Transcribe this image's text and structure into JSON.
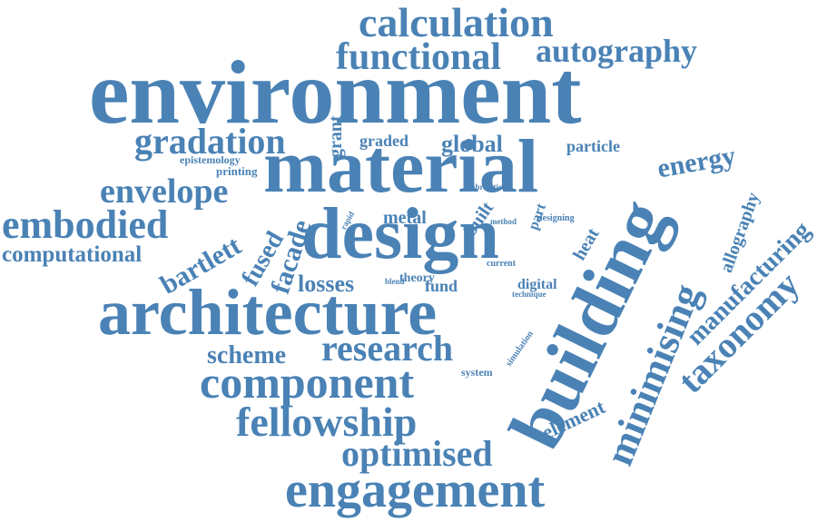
{
  "color": "#4a82b5",
  "words": {
    "calculation": "calculation",
    "functional": "functional",
    "autography": "autography",
    "environment": "environment",
    "gradation": "gradation",
    "grant": "grant",
    "graded": "graded",
    "global": "global",
    "particle": "particle",
    "energy": "energy",
    "epistemology": "epistemology",
    "printing": "printing",
    "material": "material",
    "envelope": "envelope",
    "embodied": "embodied",
    "bartlett": "bartlett",
    "computational": "computational",
    "fused": "fused",
    "facade": "facade",
    "rapid": "rapid",
    "metal": "metal",
    "built": "built",
    "method": "method",
    "fabrication": "fabrication",
    "part": "part",
    "designing": "designing",
    "heat": "heat",
    "design": "design",
    "building": "building",
    "allography": "allography",
    "manufacturing": "manufacturing",
    "taxonomy": "taxonomy",
    "minimising": "minimising",
    "losses": "losses",
    "blend": "blend",
    "theory": "theory",
    "fund": "fund",
    "current": "current",
    "digital": "digital",
    "technique": "technique",
    "architecture": "architecture",
    "simulation": "simulation",
    "scheme": "scheme",
    "research": "research",
    "system": "system",
    "component": "component",
    "element": "element",
    "fellowship": "fellowship",
    "optimised": "optimised",
    "engagement": "engagement"
  }
}
